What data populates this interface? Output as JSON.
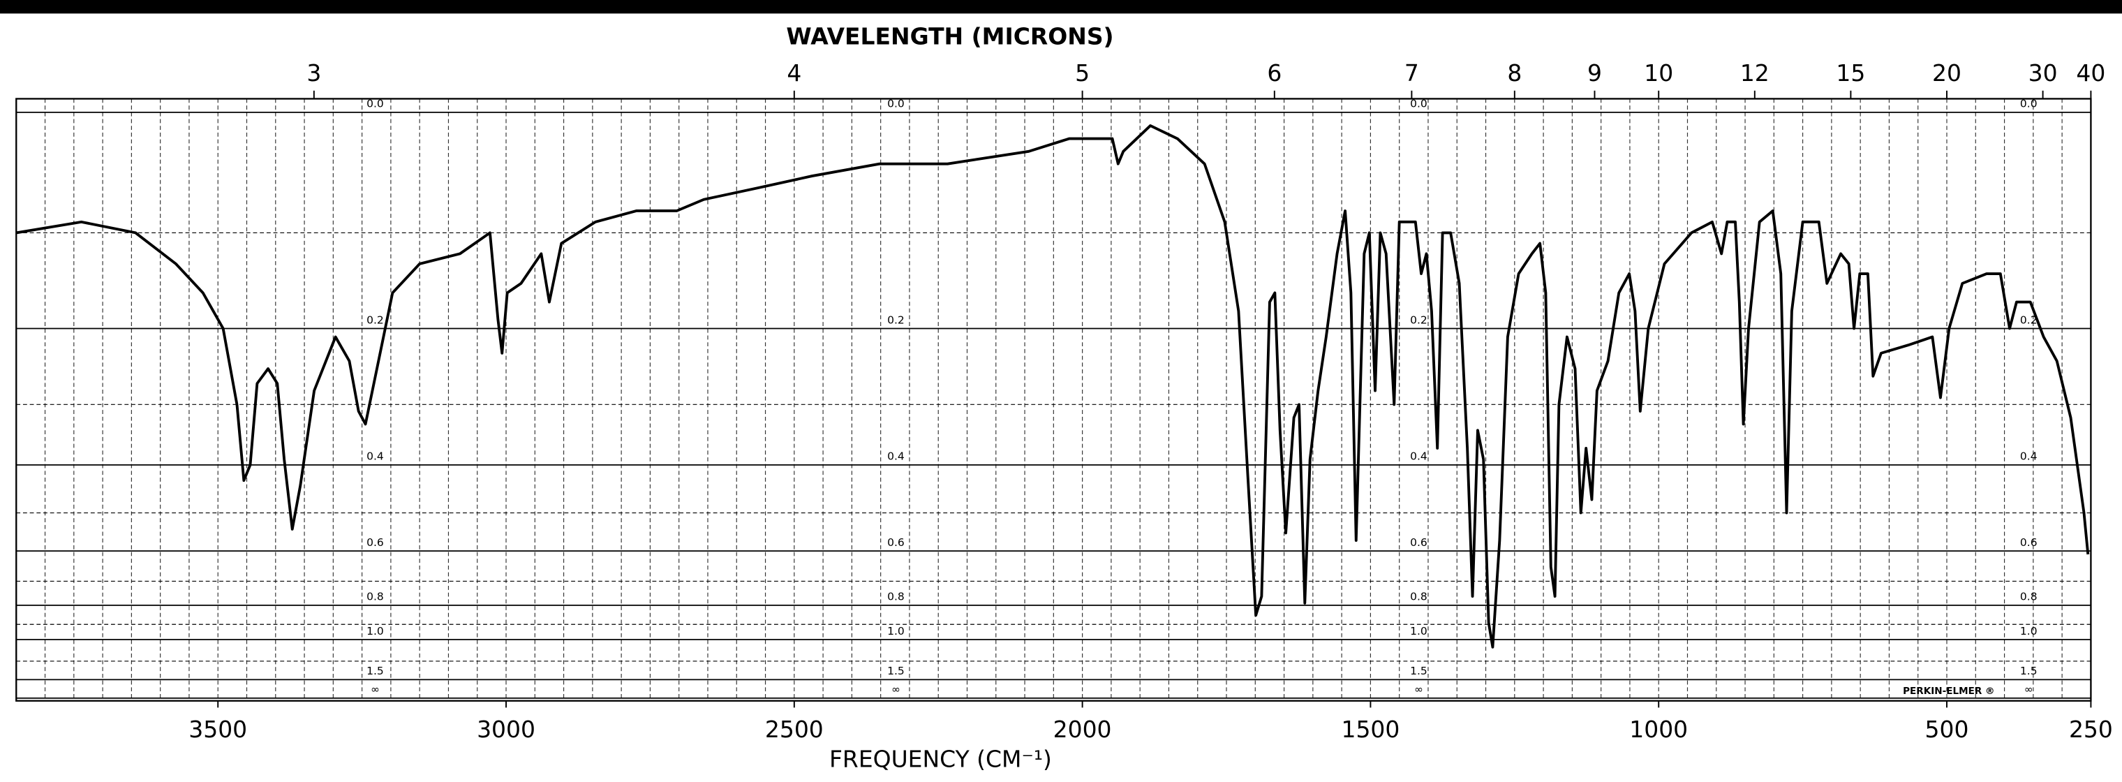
{
  "chart_data": {
    "type": "line",
    "x2label": "WAVELENGTH (MICRONS)",
    "xlabel": "FREQUENCY (CM⁻¹)",
    "brand": "PERKIN-ELMER ®",
    "color": "#000000",
    "yscale": "absorbance",
    "grid": true,
    "xlim": [
      3850,
      250
    ],
    "ylim": [
      0,
      null
    ],
    "xticks": [
      3500,
      3000,
      2500,
      2000,
      1500,
      1000,
      500,
      250
    ],
    "x2ticks": [
      3,
      4,
      5,
      6,
      7,
      8,
      9,
      10,
      12,
      15,
      20,
      30,
      40
    ],
    "xgrid_step": 50,
    "yticks": [
      {
        "value": 0,
        "label": "0.0"
      },
      0.2,
      0.4,
      0.6,
      0.8,
      {
        "value": 1,
        "label": "1.0"
      },
      1.5,
      {
        "value": null,
        "label": "∞"
      }
    ],
    "y_grid": [
      0.1,
      0.3,
      0.5,
      0.7,
      0.9,
      1.2
    ],
    "x": [
      3850,
      3737,
      3643,
      3573,
      3526,
      3491,
      3467,
      3455,
      3444,
      3432,
      3413,
      3397,
      3385,
      3371,
      3357,
      3333,
      3296,
      3272,
      3256,
      3244,
      3232,
      3197,
      3150,
      3080,
      3028,
      3014,
      3007,
      2998,
      2974,
      2939,
      2925,
      2904,
      2845,
      2774,
      2704,
      2657,
      2563,
      2469,
      2352,
      2234,
      2093,
      2023,
      1964,
      1948,
      1938,
      1929,
      1882,
      1835,
      1788,
      1753,
      1729,
      1713,
      1699,
      1689,
      1675,
      1666,
      1657,
      1647,
      1633,
      1624,
      1614,
      1605,
      1591,
      1577,
      1558,
      1544,
      1534,
      1525,
      1511,
      1502,
      1492,
      1483,
      1473,
      1459,
      1450,
      1436,
      1422,
      1412,
      1403,
      1394,
      1384,
      1375,
      1361,
      1346,
      1332,
      1323,
      1314,
      1304,
      1295,
      1288,
      1276,
      1262,
      1243,
      1220,
      1206,
      1196,
      1187,
      1180,
      1173,
      1159,
      1145,
      1135,
      1126,
      1116,
      1107,
      1088,
      1069,
      1051,
      1041,
      1032,
      1018,
      990,
      943,
      907,
      891,
      881,
      867,
      860,
      853,
      844,
      825,
      802,
      788,
      778,
      769,
      750,
      722,
      708,
      684,
      670,
      661,
      651,
      637,
      628,
      614,
      567,
      525,
      511,
      496,
      473,
      431,
      407,
      391,
      379,
      355,
      332,
      309,
      285,
      262,
      255
    ],
    "values": [
      0.1,
      0.09,
      0.1,
      0.13,
      0.16,
      0.2,
      0.3,
      0.43,
      0.4,
      0.27,
      0.25,
      0.27,
      0.39,
      0.54,
      0.44,
      0.28,
      0.21,
      0.24,
      0.31,
      0.33,
      0.28,
      0.16,
      0.13,
      0.12,
      0.1,
      0.19,
      0.23,
      0.16,
      0.15,
      0.12,
      0.17,
      0.11,
      0.09,
      0.08,
      0.08,
      0.07,
      0.06,
      0.05,
      0.04,
      0.04,
      0.03,
      0.02,
      0.02,
      0.02,
      0.04,
      0.03,
      0.01,
      0.02,
      0.04,
      0.09,
      0.18,
      0.42,
      0.85,
      0.76,
      0.17,
      0.16,
      0.34,
      0.55,
      0.32,
      0.3,
      0.79,
      0.39,
      0.28,
      0.21,
      0.12,
      0.08,
      0.16,
      0.57,
      0.12,
      0.1,
      0.28,
      0.1,
      0.12,
      0.3,
      0.09,
      0.09,
      0.09,
      0.14,
      0.12,
      0.18,
      0.37,
      0.1,
      0.1,
      0.15,
      0.37,
      0.76,
      0.34,
      0.39,
      0.89,
      1.06,
      0.57,
      0.21,
      0.14,
      0.12,
      0.11,
      0.16,
      0.65,
      0.76,
      0.3,
      0.21,
      0.25,
      0.5,
      0.37,
      0.47,
      0.28,
      0.24,
      0.16,
      0.14,
      0.18,
      0.31,
      0.2,
      0.13,
      0.1,
      0.09,
      0.12,
      0.09,
      0.09,
      0.17,
      0.33,
      0.2,
      0.09,
      0.08,
      0.14,
      0.5,
      0.18,
      0.09,
      0.09,
      0.15,
      0.12,
      0.13,
      0.2,
      0.14,
      0.14,
      0.26,
      0.23,
      0.22,
      0.21,
      0.29,
      0.2,
      0.15,
      0.14,
      0.14,
      0.2,
      0.17,
      0.17,
      0.21,
      0.24,
      0.32,
      0.5,
      0.61
    ]
  }
}
